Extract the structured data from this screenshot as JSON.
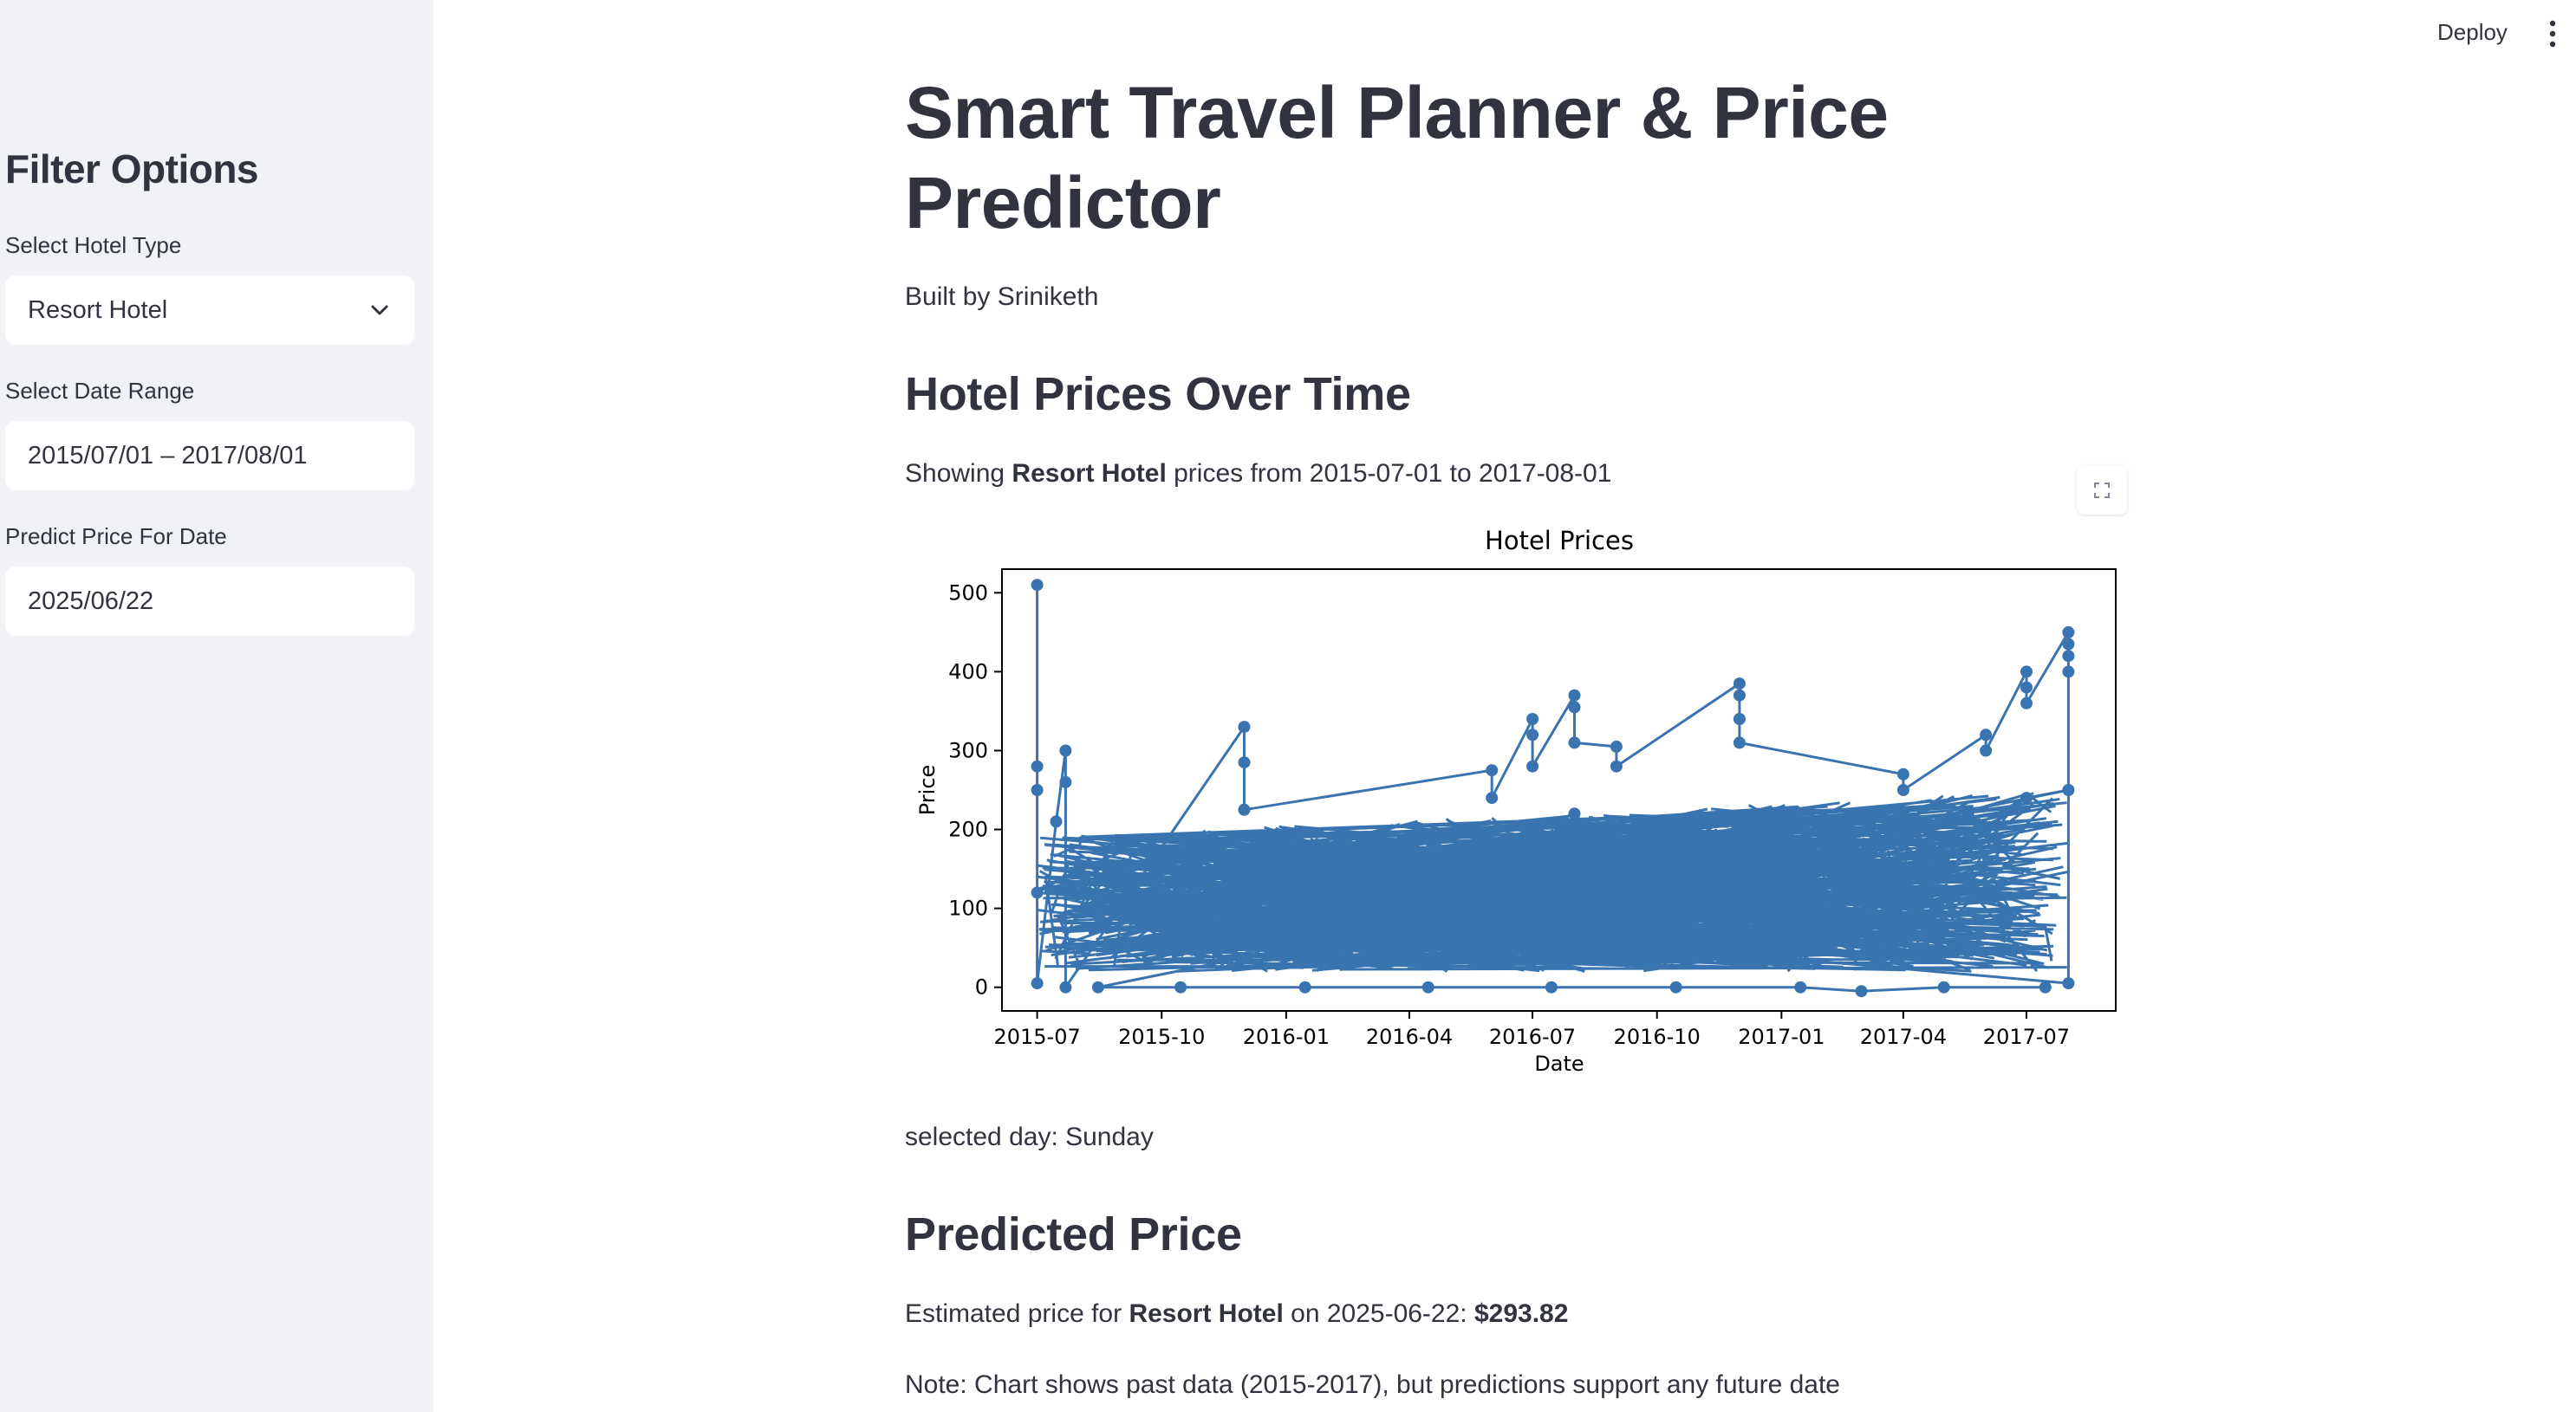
{
  "topbar": {
    "deploy_label": "Deploy",
    "menu_icon": "kebab-menu-icon"
  },
  "sidebar": {
    "heading": "Filter Options",
    "hotel_type": {
      "label": "Select Hotel Type",
      "value": "Resort Hotel",
      "icon": "chevron-down-icon"
    },
    "date_range": {
      "label": "Select Date Range",
      "value": "2015/07/01 – 2017/08/01"
    },
    "predict_date": {
      "label": "Predict Price For Date",
      "value": "2025/06/22"
    }
  },
  "main": {
    "title": "Smart Travel Planner & Price Predictor",
    "byline": "Built by Sriniketh",
    "section1": "Hotel Prices Over Time",
    "showing": {
      "prefix": "Showing ",
      "hotel": "Resort Hotel",
      "middle": " prices from 2015-07-01 to 2017-08-01"
    },
    "selected_day": "selected day: Sunday",
    "section2": "Predicted Price",
    "estimate": {
      "prefix": "Estimated price for ",
      "hotel": "Resort Hotel",
      "middle": " on 2025-06-22: ",
      "price": "$293.82"
    },
    "note": "Note: Chart shows past data (2015-2017), but predictions support any future date",
    "fullscreen_icon": "fullscreen-icon"
  },
  "chart_data": {
    "type": "line",
    "title": "Hotel Prices",
    "xlabel": "Date",
    "ylabel": "Price",
    "x_ticks": [
      "2015-07",
      "2015-10",
      "2016-01",
      "2016-04",
      "2016-07",
      "2016-10",
      "2017-01",
      "2017-04",
      "2017-07"
    ],
    "y_ticks": [
      0,
      100,
      200,
      300,
      400,
      500
    ],
    "xlim": [
      "2015-06-05",
      "2017-09-05"
    ],
    "ylim": [
      -30,
      530
    ],
    "series_color": "#3a74b0",
    "grid": false,
    "legend": "none",
    "series": [
      {
        "marker": "circle",
        "points": [
          [
            "2015-07-01",
            510
          ],
          [
            "2015-07-01",
            280
          ],
          [
            "2015-07-01",
            250
          ],
          [
            "2015-07-01",
            5
          ],
          [
            "2015-07-15",
            210
          ],
          [
            "2015-07-22",
            300
          ],
          [
            "2015-07-22",
            260
          ],
          [
            "2015-07-22",
            0
          ],
          [
            "2015-12-01",
            330
          ],
          [
            "2015-12-01",
            285
          ],
          [
            "2015-12-01",
            225
          ],
          [
            "2016-06-01",
            275
          ],
          [
            "2016-06-01",
            240
          ],
          [
            "2016-07-01",
            340
          ],
          [
            "2016-07-01",
            320
          ],
          [
            "2016-07-01",
            280
          ],
          [
            "2016-08-01",
            370
          ],
          [
            "2016-08-01",
            355
          ],
          [
            "2016-08-01",
            310
          ],
          [
            "2016-09-01",
            305
          ],
          [
            "2016-09-01",
            280
          ],
          [
            "2016-12-01",
            385
          ],
          [
            "2016-12-01",
            370
          ],
          [
            "2016-12-01",
            340
          ],
          [
            "2016-12-01",
            310
          ],
          [
            "2017-04-01",
            270
          ],
          [
            "2017-04-01",
            250
          ],
          [
            "2017-06-01",
            320
          ],
          [
            "2017-06-01",
            300
          ],
          [
            "2017-07-01",
            400
          ],
          [
            "2017-07-01",
            380
          ],
          [
            "2017-07-01",
            360
          ],
          [
            "2017-08-01",
            450
          ],
          [
            "2017-08-01",
            435
          ],
          [
            "2017-08-01",
            420
          ],
          [
            "2017-08-01",
            400
          ],
          [
            "2017-08-01",
            5
          ],
          [
            "2015-07-01",
            120
          ],
          [
            "2015-08-01",
            150
          ],
          [
            "2015-09-01",
            90
          ],
          [
            "2015-10-01",
            110
          ],
          [
            "2015-11-01",
            70
          ],
          [
            "2015-12-01",
            100
          ],
          [
            "2016-01-01",
            80
          ],
          [
            "2016-02-01",
            90
          ],
          [
            "2016-03-01",
            110
          ],
          [
            "2016-04-01",
            100
          ],
          [
            "2016-05-01",
            130
          ],
          [
            "2016-06-01",
            160
          ],
          [
            "2016-07-01",
            200
          ],
          [
            "2016-08-01",
            220
          ],
          [
            "2016-09-01",
            150
          ],
          [
            "2016-10-01",
            110
          ],
          [
            "2016-11-01",
            90
          ],
          [
            "2016-12-01",
            120
          ],
          [
            "2017-01-01",
            100
          ],
          [
            "2017-02-01",
            110
          ],
          [
            "2017-03-01",
            120
          ],
          [
            "2017-04-01",
            150
          ],
          [
            "2017-05-01",
            160
          ],
          [
            "2017-06-01",
            200
          ],
          [
            "2017-07-01",
            240
          ],
          [
            "2017-08-01",
            250
          ],
          [
            "2015-08-15",
            0
          ],
          [
            "2015-10-15",
            0
          ],
          [
            "2016-01-15",
            0
          ],
          [
            "2016-04-15",
            0
          ],
          [
            "2016-07-15",
            0
          ],
          [
            "2016-10-15",
            0
          ],
          [
            "2017-01-15",
            0
          ],
          [
            "2017-03-01",
            -5
          ],
          [
            "2017-05-01",
            0
          ],
          [
            "2017-07-15",
            0
          ]
        ]
      }
    ]
  }
}
